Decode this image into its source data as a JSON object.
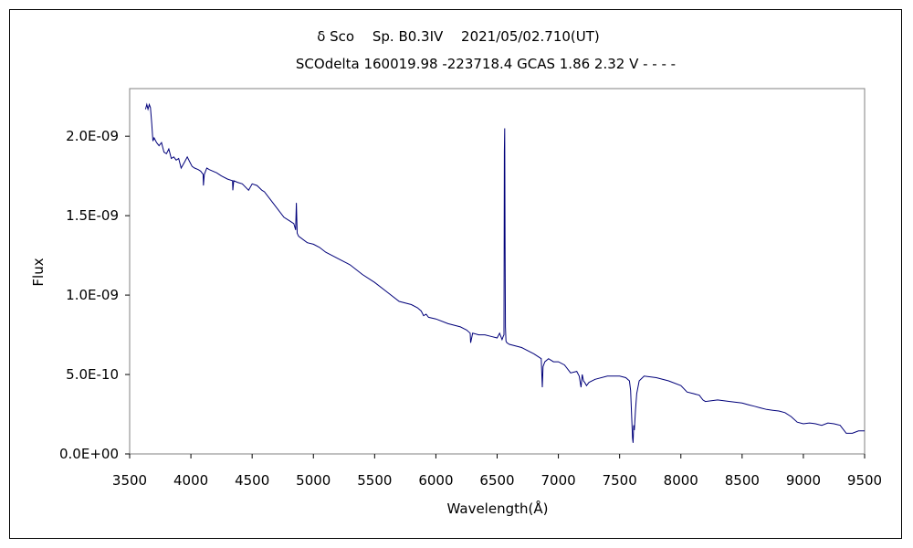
{
  "chart_data": {
    "type": "line",
    "title": "δ Sco　 Sp. B0.3IV　 2021/05/02.710(UT)",
    "subtitle": "SCOdelta 160019.98 -223718.4 GCAS 1.86 2.32 V - - - -",
    "xlabel": "Wavelength(Å)",
    "ylabel": "Flux",
    "xlim": [
      3500,
      9500
    ],
    "ylim": [
      0,
      2.3e-09
    ],
    "x_ticks": [
      3500,
      4000,
      4500,
      5000,
      5500,
      6000,
      6500,
      7000,
      7500,
      8000,
      8500,
      9000,
      9500
    ],
    "x_tick_labels": [
      "3500",
      "4000",
      "4500",
      "5000",
      "5500",
      "6000",
      "6500",
      "7000",
      "7500",
      "8000",
      "8500",
      "9000",
      "9500"
    ],
    "y_ticks": [
      0,
      5e-10,
      1e-09,
      1.5e-09,
      2e-09
    ],
    "y_tick_labels": [
      "0.0E+00",
      "5.0E-10",
      "1.0E-09",
      "1.5E-09",
      "2.0E-09"
    ],
    "grid": false,
    "legend": "none",
    "line_color": "#00007a",
    "series": [
      {
        "x": [
          3630,
          3640,
          3650,
          3660,
          3670,
          3680,
          3690,
          3700,
          3720,
          3740,
          3760,
          3780,
          3800,
          3820,
          3840,
          3860,
          3880,
          3900,
          3920,
          3950,
          3970,
          3990,
          4010,
          4030,
          4060,
          4080,
          4100,
          4102,
          4110,
          4130,
          4150,
          4180,
          4210,
          4250,
          4300,
          4340,
          4342,
          4350,
          4380,
          4420,
          4471,
          4500,
          4540,
          4580,
          4600,
          4650,
          4700,
          4760,
          4800,
          4840,
          4855,
          4861,
          4868,
          4880,
          4950,
          5000,
          5050,
          5100,
          5150,
          5200,
          5300,
          5400,
          5500,
          5600,
          5700,
          5800,
          5850,
          5880,
          5900,
          5920,
          5940,
          6000,
          6100,
          6200,
          6250,
          6280,
          6284,
          6300,
          6350,
          6400,
          6450,
          6500,
          6520,
          6540,
          6550,
          6556,
          6559,
          6562,
          6565,
          6568,
          6572,
          6580,
          6600,
          6700,
          6800,
          6860,
          6869,
          6875,
          6890,
          6920,
          6960,
          7000,
          7050,
          7100,
          7150,
          7170,
          7185,
          7195,
          7205,
          7215,
          7230,
          7250,
          7300,
          7400,
          7500,
          7550,
          7580,
          7590,
          7595,
          7600,
          7605,
          7610,
          7615,
          7620,
          7630,
          7640,
          7660,
          7700,
          7800,
          7900,
          8000,
          8050,
          8100,
          8150,
          8180,
          8200,
          8300,
          8400,
          8500,
          8550,
          8600,
          8650,
          8700,
          8750,
          8800,
          8850,
          8900,
          8950,
          9000,
          9050,
          9100,
          9150,
          9200,
          9250,
          9300,
          9350,
          9400,
          9450,
          9500
        ],
        "values": [
          2.17e-09,
          2.2e-09,
          2.17e-09,
          2.2e-09,
          2.18e-09,
          2.08e-09,
          1.97e-09,
          1.99e-09,
          1.96e-09,
          1.94e-09,
          1.96e-09,
          1.9e-09,
          1.89e-09,
          1.92e-09,
          1.86e-09,
          1.87e-09,
          1.85e-09,
          1.86e-09,
          1.8e-09,
          1.84e-09,
          1.87e-09,
          1.84e-09,
          1.81e-09,
          1.8e-09,
          1.79e-09,
          1.78e-09,
          1.76e-09,
          1.69e-09,
          1.76e-09,
          1.8e-09,
          1.79e-09,
          1.78e-09,
          1.77e-09,
          1.75e-09,
          1.73e-09,
          1.72e-09,
          1.66e-09,
          1.72e-09,
          1.71e-09,
          1.7e-09,
          1.66e-09,
          1.7e-09,
          1.69e-09,
          1.66e-09,
          1.65e-09,
          1.6e-09,
          1.55e-09,
          1.49e-09,
          1.47e-09,
          1.45e-09,
          1.41e-09,
          1.58e-09,
          1.39e-09,
          1.37e-09,
          1.33e-09,
          1.32e-09,
          1.3e-09,
          1.27e-09,
          1.25e-09,
          1.23e-09,
          1.19e-09,
          1.13e-09,
          1.08e-09,
          1.02e-09,
          9.6e-10,
          9.4e-10,
          9.2e-10,
          9e-10,
          8.7e-10,
          8.8e-10,
          8.6e-10,
          8.5e-10,
          8.2e-10,
          8e-10,
          7.8e-10,
          7.6e-10,
          7e-10,
          7.6e-10,
          7.5e-10,
          7.5e-10,
          7.4e-10,
          7.3e-10,
          7.6e-10,
          7.2e-10,
          7.4e-10,
          7.5e-10,
          1.9e-09,
          2.05e-09,
          1.3e-09,
          8e-10,
          7.1e-10,
          7e-10,
          6.9e-10,
          6.7e-10,
          6.3e-10,
          6e-10,
          4.2e-10,
          5.5e-10,
          5.8e-10,
          6e-10,
          5.8e-10,
          5.8e-10,
          5.6e-10,
          5.1e-10,
          5.2e-10,
          4.9e-10,
          4.2e-10,
          5e-10,
          4.6e-10,
          4.5e-10,
          4.3e-10,
          4.5e-10,
          4.7e-10,
          4.9e-10,
          4.9e-10,
          4.8e-10,
          4.6e-10,
          4e-10,
          3e-10,
          2e-10,
          1e-10,
          7e-11,
          1.8e-10,
          1.5e-10,
          2.8e-10,
          3.8e-10,
          4.6e-10,
          4.9e-10,
          4.8e-10,
          4.6e-10,
          4.3e-10,
          3.9e-10,
          3.8e-10,
          3.7e-10,
          3.4e-10,
          3.3e-10,
          3.4e-10,
          3.3e-10,
          3.2e-10,
          3.1e-10,
          3e-10,
          2.9e-10,
          2.8e-10,
          2.75e-10,
          2.7e-10,
          2.6e-10,
          2.35e-10,
          2e-10,
          1.9e-10,
          1.95e-10,
          1.9e-10,
          1.8e-10,
          1.95e-10,
          1.9e-10,
          1.8e-10,
          1.3e-10,
          1.3e-10,
          1.45e-10,
          1.45e-10
        ]
      }
    ]
  }
}
